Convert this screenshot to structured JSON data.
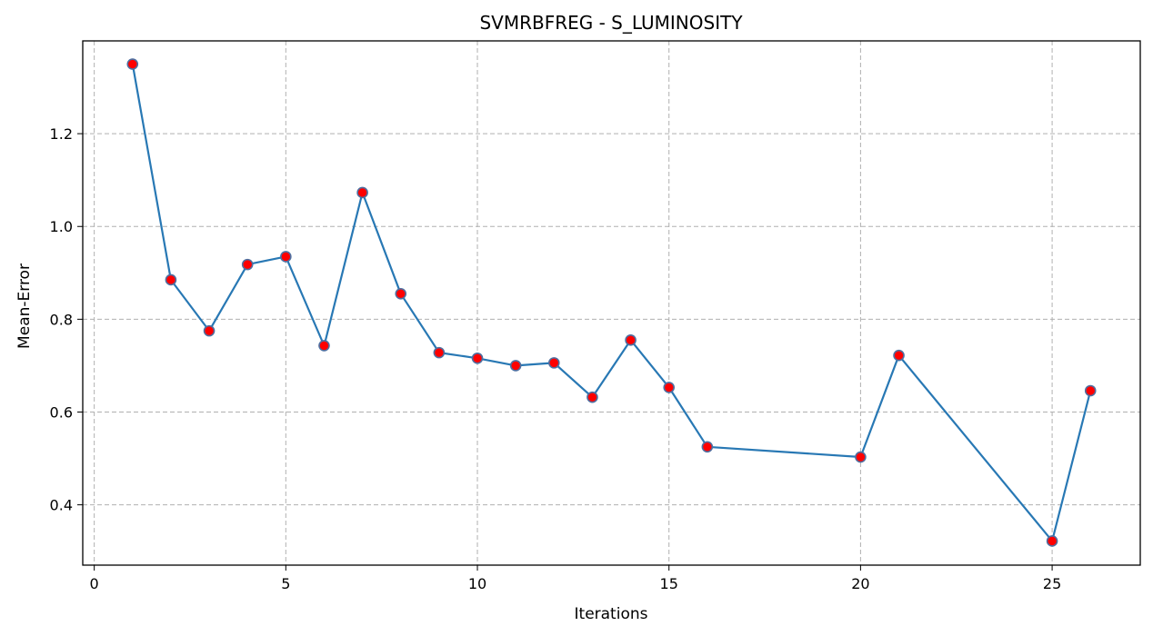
{
  "chart_data": {
    "type": "line",
    "title": "SVMRBFREG - S_LUMINOSITY",
    "xlabel": "Iterations",
    "ylabel": "Mean-Error",
    "xlim": [
      -0.3,
      27.3
    ],
    "ylim": [
      0.27,
      1.4
    ],
    "xticks": [
      0,
      5,
      10,
      15,
      20,
      25
    ],
    "yticks": [
      0.4,
      0.6,
      0.8,
      1.0,
      1.2
    ],
    "ytick_labels": [
      "0.4",
      "0.6",
      "0.8",
      "1.0",
      "1.2"
    ],
    "grid": true,
    "grid_style": "dashed",
    "line_color": "#2878b4",
    "marker_color": "#ff0000",
    "marker_edge_color": "#4f6fa0",
    "series": [
      {
        "x": [
          1,
          2,
          3,
          4,
          5,
          6,
          7,
          8,
          9,
          10,
          11,
          12,
          13,
          14,
          15,
          16,
          20,
          21,
          25,
          26
        ],
        "y": [
          1.35,
          0.885,
          0.775,
          0.918,
          0.935,
          0.743,
          1.073,
          0.855,
          0.728,
          0.716,
          0.7,
          0.706,
          0.632,
          0.755,
          0.653,
          0.525,
          0.503,
          0.722,
          0.322,
          0.646
        ]
      }
    ]
  }
}
